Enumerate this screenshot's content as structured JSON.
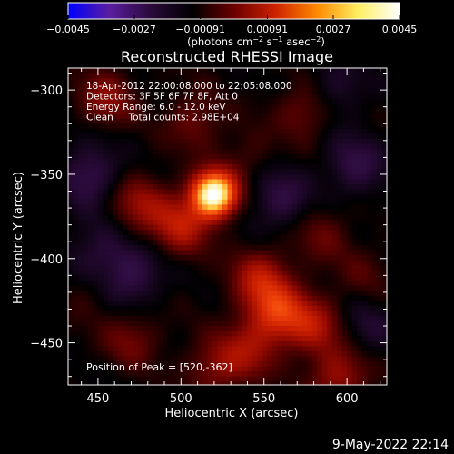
{
  "chart_data": {
    "type": "heatmap",
    "title": "Reconstructed RHESSI Image",
    "xlabel": "Heliocentric X (arcsec)",
    "ylabel": "Heliocentric Y (arcsec)",
    "xlim": [
      432,
      624
    ],
    "ylim": [
      -475,
      -287
    ],
    "x_ticks": [
      450,
      500,
      550,
      600
    ],
    "y_ticks": [
      -450,
      -400,
      -350,
      -300
    ],
    "x_tick_labels": [
      "450",
      "500",
      "550",
      "600"
    ],
    "y_tick_labels": [
      "−450",
      "−400",
      "−350",
      "−300"
    ],
    "colorbar": {
      "range": [
        -0.0045,
        0.0045
      ],
      "ticks": [
        -0.0045,
        -0.0027,
        -0.00091,
        0.00091,
        0.0027,
        0.0045
      ],
      "tick_labels": [
        "−0.0045",
        "−0.0027",
        "−0.00091",
        "0.00091",
        "0.0027",
        "0.0045"
      ],
      "units_label": "(photons cm",
      "units_exp1": "−2",
      "units_mid": " s",
      "units_exp2": "−1",
      "units_mid2": " asec",
      "units_exp3": "−2",
      "units_close": ")",
      "colors": [
        "#0000ff",
        "#5a1ea0",
        "#2a0a3a",
        "#000000",
        "#6a0000",
        "#cc2200",
        "#ff8800",
        "#ffee60",
        "#ffffff"
      ]
    },
    "annotations": [
      "18-Apr-2012 22:00:08.000 to 22:05:08.000",
      "Detectors: 3F 5F 6F 7F 8F, Att 0",
      "Energy Range: 6.0 - 12.0 keV",
      "Clean     Total counts: 2.98E+04"
    ],
    "peak_label": "Position of Peak = [520,-362]",
    "sources": [
      {
        "x": 520,
        "y": -362,
        "value": 0.0045
      },
      {
        "x": 558,
        "y": -432,
        "value": 0.0018
      },
      {
        "x": 548,
        "y": -412,
        "value": 0.0013
      },
      {
        "x": 500,
        "y": -380,
        "value": 0.0014
      },
      {
        "x": 475,
        "y": -368,
        "value": 0.001
      },
      {
        "x": 580,
        "y": -440,
        "value": 0.0012
      },
      {
        "x": 540,
        "y": -455,
        "value": 0.001
      },
      {
        "x": 595,
        "y": -470,
        "value": 0.0011
      },
      {
        "x": 470,
        "y": -448,
        "value": 0.0007
      },
      {
        "x": 520,
        "y": -465,
        "value": 0.0008
      },
      {
        "x": 455,
        "y": -305,
        "value": 0.0009
      },
      {
        "x": 508,
        "y": -318,
        "value": 0.0007
      },
      {
        "x": 575,
        "y": -312,
        "value": 0.0008
      },
      {
        "x": 540,
        "y": -340,
        "value": 0.0004
      },
      {
        "x": 585,
        "y": -385,
        "value": 0.0006
      },
      {
        "x": 610,
        "y": -410,
        "value": 0.0004
      },
      {
        "x": 445,
        "y": -420,
        "value": 0.0003
      }
    ],
    "negative_regions": [
      {
        "x": 445,
        "y": -350,
        "value": -0.0009
      },
      {
        "x": 560,
        "y": -365,
        "value": -0.0008
      },
      {
        "x": 605,
        "y": -345,
        "value": -0.0008
      },
      {
        "x": 470,
        "y": -410,
        "value": -0.0009
      },
      {
        "x": 448,
        "y": -395,
        "value": -0.0006
      },
      {
        "x": 612,
        "y": -440,
        "value": -0.0005
      },
      {
        "x": 592,
        "y": -300,
        "value": -0.0006
      }
    ]
  },
  "footer_date": "9-May-2022 22:14"
}
